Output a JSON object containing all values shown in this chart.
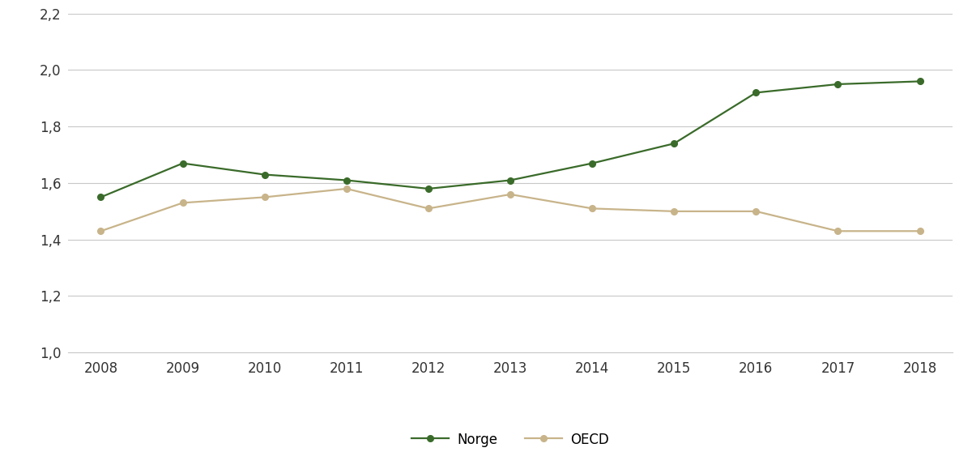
{
  "years": [
    2008,
    2009,
    2010,
    2011,
    2012,
    2013,
    2014,
    2015,
    2016,
    2017,
    2018
  ],
  "norge": [
    1.55,
    1.67,
    1.63,
    1.61,
    1.58,
    1.61,
    1.67,
    1.74,
    1.92,
    1.95,
    1.96
  ],
  "oecd": [
    1.43,
    1.53,
    1.55,
    1.58,
    1.51,
    1.56,
    1.51,
    1.5,
    1.5,
    1.43,
    1.43
  ],
  "norge_color": "#3a6b2a",
  "oecd_color": "#c8b48a",
  "ylim": [
    1.0,
    2.2
  ],
  "yticks": [
    1.0,
    1.2,
    1.4,
    1.6,
    1.8,
    2.0,
    2.2
  ],
  "ytick_labels": [
    "1,0",
    "1,2",
    "1,4",
    "1,6",
    "1,8",
    "2,0",
    "2,2"
  ],
  "legend_norge": "Norge",
  "legend_oecd": "OECD",
  "background_color": "#ffffff",
  "grid_color": "#c8c8c8",
  "line_width": 1.6,
  "marker_size": 5.5
}
